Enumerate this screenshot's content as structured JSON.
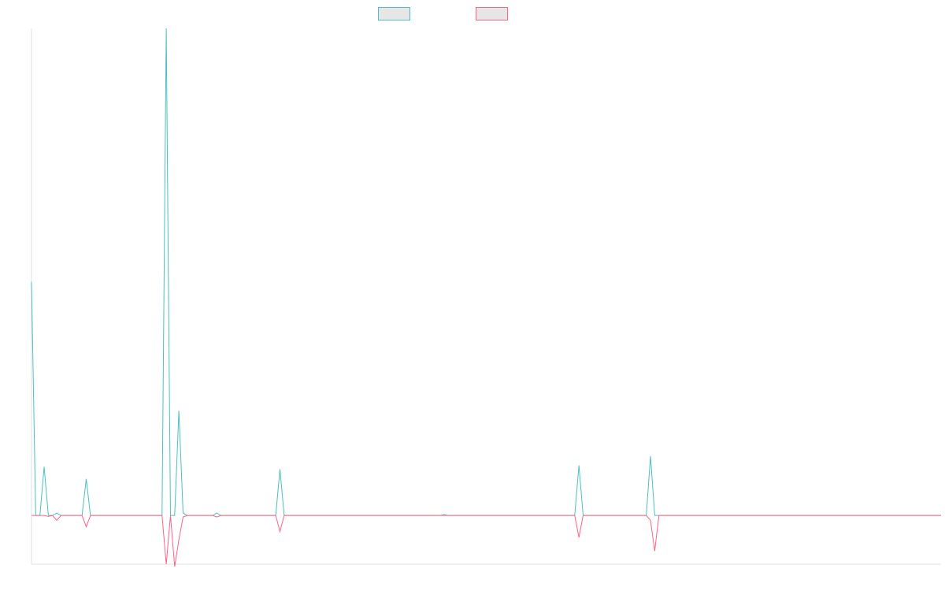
{
  "chart_data": {
    "type": "line",
    "title": "",
    "xlabel": "",
    "ylabel": "",
    "legend_placement": "top-center",
    "grid": false,
    "xlim": [
      0,
      216
    ],
    "ylim": [
      -0.1,
      1.0
    ],
    "series": [
      {
        "color": "#4bc0c0",
        "points": [
          [
            0,
            0.48
          ],
          [
            1,
            0
          ],
          [
            2,
            0
          ],
          [
            3,
            0.1
          ],
          [
            4,
            0
          ],
          [
            5,
            0
          ],
          [
            6,
            0.005
          ],
          [
            7,
            0
          ],
          [
            12,
            0
          ],
          [
            13,
            0.075
          ],
          [
            14,
            0
          ],
          [
            31,
            0
          ],
          [
            32,
            1.0
          ],
          [
            33,
            0
          ],
          [
            34,
            0
          ],
          [
            35,
            0.215
          ],
          [
            36,
            0.005
          ],
          [
            37,
            0
          ],
          [
            43,
            0
          ],
          [
            44,
            0.005
          ],
          [
            45,
            0
          ],
          [
            58,
            0
          ],
          [
            59,
            0.095
          ],
          [
            60,
            0
          ],
          [
            97,
            0
          ],
          [
            98,
            0.002
          ],
          [
            99,
            0
          ],
          [
            129,
            0
          ],
          [
            130,
            0.103
          ],
          [
            131,
            0
          ],
          [
            146,
            0
          ],
          [
            147,
            0.122
          ],
          [
            148,
            0
          ],
          [
            216,
            0
          ]
        ]
      },
      {
        "color": "#ff6384",
        "points": [
          [
            0,
            0
          ],
          [
            1,
            0
          ],
          [
            2,
            0
          ],
          [
            3,
            0
          ],
          [
            4,
            -0.002
          ],
          [
            5,
            0
          ],
          [
            6,
            -0.01
          ],
          [
            7,
            0
          ],
          [
            12,
            0
          ],
          [
            13,
            -0.023
          ],
          [
            14,
            0
          ],
          [
            31,
            0
          ],
          [
            32,
            -0.1
          ],
          [
            33,
            0
          ],
          [
            34,
            -0.105
          ],
          [
            35,
            -0.05
          ],
          [
            36,
            -0.003
          ],
          [
            37,
            0
          ],
          [
            43,
            0
          ],
          [
            44,
            -0.003
          ],
          [
            45,
            0
          ],
          [
            58,
            0
          ],
          [
            59,
            -0.033
          ],
          [
            60,
            0
          ],
          [
            129,
            0
          ],
          [
            130,
            -0.045
          ],
          [
            131,
            0
          ],
          [
            146,
            0
          ],
          [
            147,
            -0.01
          ],
          [
            148,
            -0.073
          ],
          [
            149,
            0
          ],
          [
            216,
            0
          ]
        ]
      }
    ]
  }
}
